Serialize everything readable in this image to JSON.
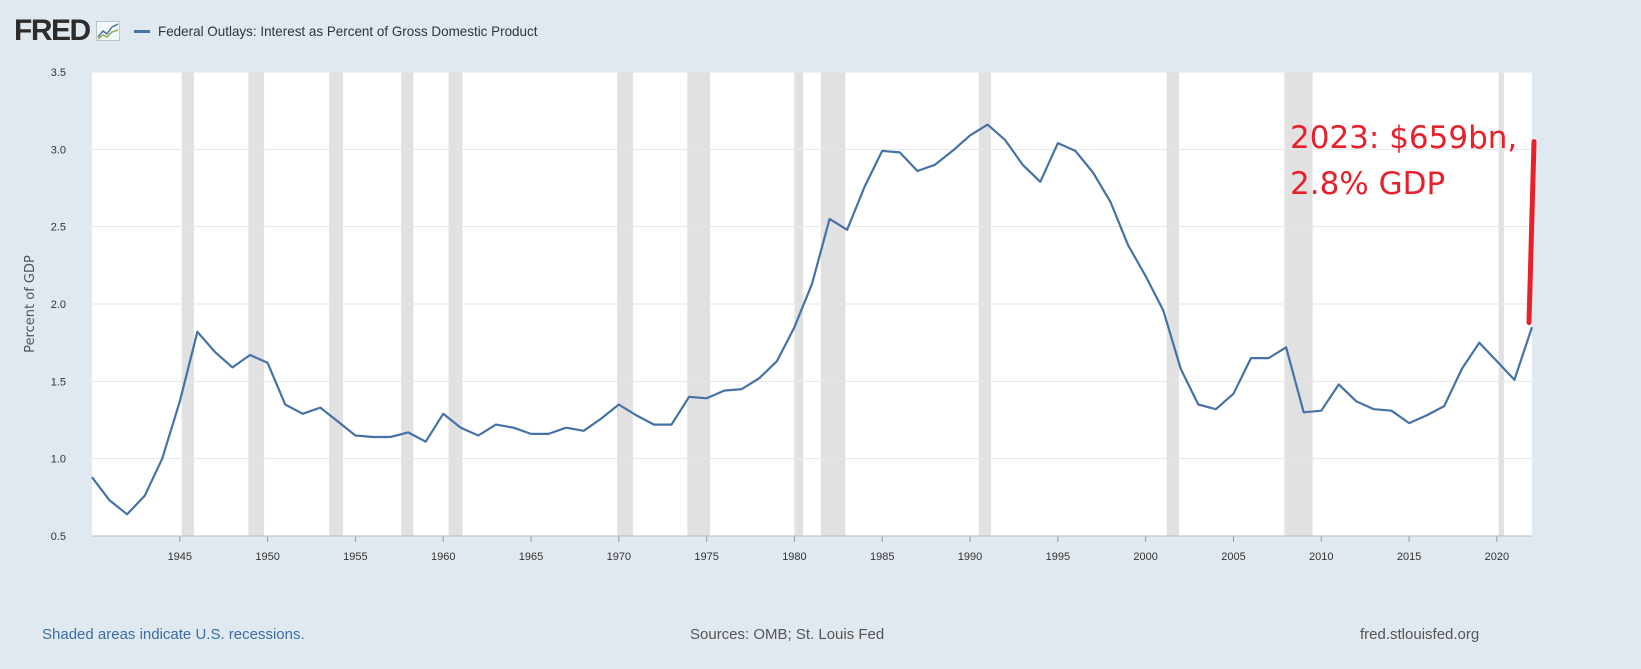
{
  "header": {
    "logo_text": "FRED",
    "legend_label": "Federal Outlays: Interest as Percent of Gross Domestic Product"
  },
  "footer": {
    "recession_note": "Shaded areas indicate U.S. recessions.",
    "sources": "Sources: OMB; St. Louis Fed",
    "site": "fred.stlouisfed.org"
  },
  "colors": {
    "series": "#4572a7",
    "recession": "#e1e1e1",
    "annotation": "#e8202a",
    "grid": "#e6e6e6"
  },
  "chart_data": {
    "type": "line",
    "title": "Federal Outlays: Interest as Percent of Gross Domestic Product",
    "ylabel": "Percent of GDP",
    "xlabel": "",
    "xlim": [
      1940,
      2022
    ],
    "ylim": [
      0.5,
      3.5
    ],
    "yticks": [
      "0.5",
      "1.0",
      "1.5",
      "2.0",
      "2.5",
      "3.0",
      "3.5"
    ],
    "xticks": [
      "1945",
      "1950",
      "1955",
      "1960",
      "1965",
      "1970",
      "1975",
      "1980",
      "1985",
      "1990",
      "1995",
      "2000",
      "2005",
      "2010",
      "2015",
      "2020"
    ],
    "grid": true,
    "legend": "top-left",
    "recessions": [
      [
        1945.1,
        1945.8
      ],
      [
        1948.9,
        1949.8
      ],
      [
        1953.5,
        1954.3
      ],
      [
        1957.6,
        1958.3
      ],
      [
        1960.3,
        1961.1
      ],
      [
        1969.9,
        1970.8
      ],
      [
        1973.9,
        1975.2
      ],
      [
        1980.0,
        1980.5
      ],
      [
        1981.5,
        1982.9
      ],
      [
        1990.5,
        1991.2
      ],
      [
        2001.2,
        2001.9
      ],
      [
        2007.9,
        2009.5
      ],
      [
        2020.1,
        2020.4
      ]
    ],
    "series": [
      {
        "name": "Federal Outlays: Interest as Percent of Gross Domestic Product",
        "x": [
          1940,
          1941,
          1942,
          1943,
          1944,
          1945,
          1946,
          1947,
          1948,
          1949,
          1950,
          1951,
          1952,
          1953,
          1954,
          1955,
          1956,
          1957,
          1958,
          1959,
          1960,
          1961,
          1962,
          1963,
          1964,
          1965,
          1966,
          1967,
          1968,
          1969,
          1970,
          1971,
          1972,
          1973,
          1974,
          1975,
          1976,
          1977,
          1978,
          1979,
          1980,
          1981,
          1982,
          1983,
          1984,
          1985,
          1986,
          1987,
          1988,
          1989,
          1990,
          1991,
          1992,
          1993,
          1994,
          1995,
          1996,
          1997,
          1998,
          1999,
          2000,
          2001,
          2002,
          2003,
          2004,
          2005,
          2006,
          2007,
          2008,
          2009,
          2010,
          2011,
          2012,
          2013,
          2014,
          2015,
          2016,
          2017,
          2018,
          2019,
          2020,
          2021,
          2022
        ],
        "values": [
          0.88,
          0.73,
          0.64,
          0.76,
          1.0,
          1.37,
          1.82,
          1.69,
          1.59,
          1.67,
          1.62,
          1.35,
          1.29,
          1.33,
          1.24,
          1.15,
          1.14,
          1.14,
          1.17,
          1.11,
          1.29,
          1.2,
          1.15,
          1.22,
          1.2,
          1.16,
          1.16,
          1.2,
          1.18,
          1.26,
          1.35,
          1.28,
          1.22,
          1.22,
          1.4,
          1.39,
          1.44,
          1.45,
          1.52,
          1.63,
          1.85,
          2.13,
          2.55,
          2.48,
          2.76,
          2.99,
          2.98,
          2.86,
          2.9,
          2.99,
          3.09,
          3.16,
          3.06,
          2.9,
          2.79,
          3.04,
          2.99,
          2.85,
          2.66,
          2.38,
          2.18,
          1.96,
          1.58,
          1.35,
          1.32,
          1.42,
          1.65,
          1.65,
          1.72,
          1.3,
          1.31,
          1.48,
          1.37,
          1.32,
          1.31,
          1.23,
          1.28,
          1.34,
          1.58,
          1.75,
          1.63,
          1.51,
          1.85
        ]
      }
    ],
    "annotations": [
      {
        "lines": [
          "2023: $659bn,",
          "2.8% GDP"
        ],
        "from": [
          2022,
          1.88
        ],
        "to": [
          2022,
          3.05
        ]
      }
    ]
  }
}
